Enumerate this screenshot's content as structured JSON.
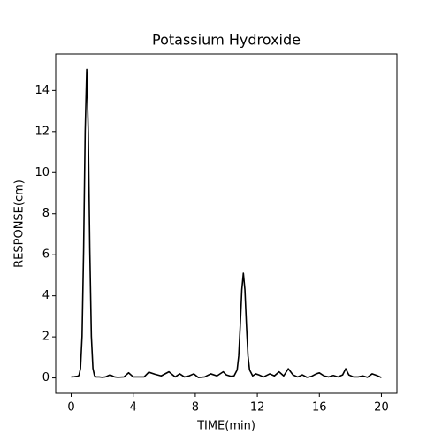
{
  "chart_data": {
    "type": "line",
    "title": "Potassium Hydroxide",
    "xlabel": "TIME(min)",
    "ylabel": "RESPONSE(cm)",
    "x": [
      0,
      0.2,
      0.4,
      0.5,
      0.6,
      0.7,
      0.8,
      0.9,
      1.0,
      1.1,
      1.2,
      1.3,
      1.4,
      1.5,
      1.6,
      1.8,
      2.0,
      2.2,
      2.5,
      2.8,
      3.0,
      3.4,
      3.7,
      4.0,
      4.4,
      4.7,
      5.0,
      5.4,
      5.8,
      6.3,
      6.7,
      7.0,
      7.3,
      7.6,
      7.9,
      8.2,
      8.6,
      9.0,
      9.4,
      9.8,
      10.0,
      10.3,
      10.5,
      10.7,
      10.8,
      10.9,
      11.0,
      11.1,
      11.2,
      11.3,
      11.4,
      11.5,
      11.7,
      11.9,
      12.1,
      12.4,
      12.8,
      13.1,
      13.4,
      13.7,
      14.0,
      14.3,
      14.6,
      14.9,
      15.2,
      15.5,
      15.8,
      16.0,
      16.3,
      16.6,
      16.9,
      17.2,
      17.5,
      17.7,
      17.9,
      18.2,
      18.5,
      18.8,
      19.1,
      19.4,
      19.7,
      20.0
    ],
    "values": [
      0.05,
      0.06,
      0.08,
      0.12,
      0.47,
      2.03,
      6.2,
      12.0,
      15.03,
      12.0,
      6.2,
      2.03,
      0.47,
      0.12,
      0.05,
      0.05,
      0.03,
      0.05,
      0.15,
      0.05,
      0.03,
      0.05,
      0.25,
      0.05,
      0.05,
      0.05,
      0.28,
      0.18,
      0.1,
      0.3,
      0.05,
      0.2,
      0.05,
      0.1,
      0.2,
      0.02,
      0.05,
      0.2,
      0.1,
      0.3,
      0.15,
      0.08,
      0.1,
      0.39,
      1.07,
      2.55,
      4.3,
      5.1,
      4.3,
      2.55,
      1.07,
      0.39,
      0.1,
      0.2,
      0.15,
      0.05,
      0.2,
      0.1,
      0.3,
      0.1,
      0.45,
      0.15,
      0.05,
      0.15,
      0.03,
      0.08,
      0.2,
      0.25,
      0.1,
      0.05,
      0.12,
      0.05,
      0.15,
      0.45,
      0.15,
      0.05,
      0.05,
      0.1,
      0.03,
      0.2,
      0.12,
      0.02
    ],
    "color": "#000000",
    "xlim": [
      -1,
      21
    ],
    "xticks": [
      0,
      4,
      8,
      12,
      16,
      20
    ],
    "ylim": [
      -0.75,
      15.78
    ],
    "yticks": [
      0,
      2,
      4,
      6,
      8,
      10,
      12,
      14
    ]
  }
}
